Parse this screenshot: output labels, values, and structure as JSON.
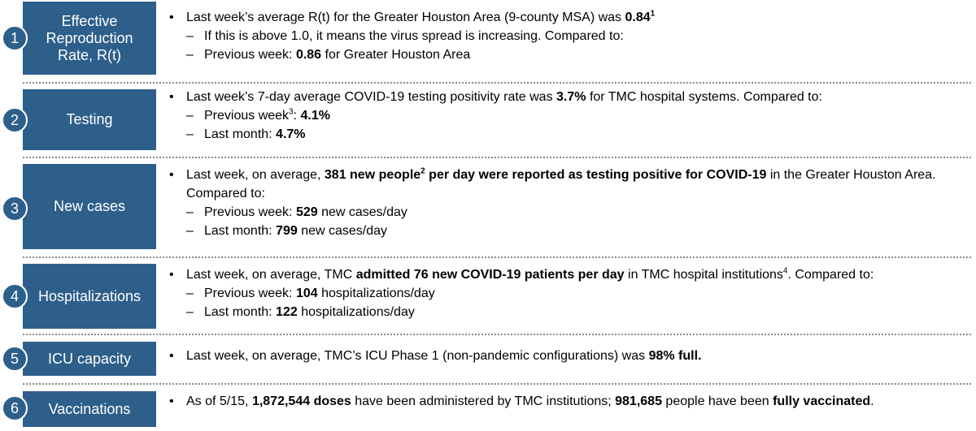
{
  "sections": [
    {
      "num": "1",
      "label_lines": [
        "Effective",
        "Reproduction",
        "Rate, R(t)"
      ],
      "lines": [
        {
          "level": 1,
          "parts": [
            {
              "t": "Last week’s average R(t) for the Greater Houston Area (9-county MSA) was "
            },
            {
              "t": "0.84",
              "b": true
            },
            {
              "t": "1",
              "sup": true,
              "b": true
            }
          ]
        },
        {
          "level": 2,
          "parts": [
            {
              "t": "If this is above 1.0, it means the virus spread is increasing. Compared to:"
            }
          ]
        },
        {
          "level": 2,
          "parts": [
            {
              "t": "Previous week: "
            },
            {
              "t": "0.86",
              "b": true
            },
            {
              "t": " for Greater Houston Area"
            }
          ]
        }
      ]
    },
    {
      "num": "2",
      "label_lines": [
        "Testing"
      ],
      "lines": [
        {
          "level": 1,
          "parts": [
            {
              "t": "Last week’s 7-day average COVID-19 testing positivity rate was "
            },
            {
              "t": "3.7%",
              "b": true
            },
            {
              "t": " for TMC hospital systems.  Compared to:"
            }
          ]
        },
        {
          "level": 2,
          "parts": [
            {
              "t": "Previous week"
            },
            {
              "t": "3",
              "sup": true
            },
            {
              "t": ": "
            },
            {
              "t": "4.1%",
              "b": true
            }
          ]
        },
        {
          "level": 2,
          "parts": [
            {
              "t": "Last month: "
            },
            {
              "t": "4.7%",
              "b": true
            }
          ]
        }
      ]
    },
    {
      "num": "3",
      "label_lines": [
        "New cases"
      ],
      "lines": [
        {
          "level": 1,
          "wrap": true,
          "parts": [
            {
              "t": "Last week, on average, "
            },
            {
              "t": "381 new people",
              "b": true
            },
            {
              "t": "2",
              "sup": true,
              "b": true
            },
            {
              "t": " per day were reported as testing positive for COVID-19",
              "b": true
            },
            {
              "t": " in the Greater Houston Area. Compared to:"
            }
          ]
        },
        {
          "level": 2,
          "parts": [
            {
              "t": "Previous week: "
            },
            {
              "t": "529",
              "b": true
            },
            {
              "t": " new cases/day"
            }
          ]
        },
        {
          "level": 2,
          "parts": [
            {
              "t": "Last month: "
            },
            {
              "t": "799",
              "b": true
            },
            {
              "t": " new cases/day"
            }
          ]
        }
      ]
    },
    {
      "num": "4",
      "label_lines": [
        "Hospitalizations"
      ],
      "lines": [
        {
          "level": 1,
          "parts": [
            {
              "t": "Last week, on average, TMC "
            },
            {
              "t": "admitted 76 new COVID-19 patients per day",
              "b": true
            },
            {
              "t": " in TMC hospital institutions"
            },
            {
              "t": "4",
              "sup": true
            },
            {
              "t": ". Compared to:"
            }
          ]
        },
        {
          "level": 2,
          "parts": [
            {
              "t": "Previous week: "
            },
            {
              "t": "104",
              "b": true
            },
            {
              "t": " hospitalizations/day"
            }
          ]
        },
        {
          "level": 2,
          "parts": [
            {
              "t": "Last month: "
            },
            {
              "t": "122",
              "b": true
            },
            {
              "t": " hospitalizations/day"
            }
          ]
        }
      ]
    },
    {
      "num": "5",
      "label_lines": [
        "ICU capacity"
      ],
      "lines": [
        {
          "level": 1,
          "parts": [
            {
              "t": "Last week, on average, TMC’s ICU Phase 1 (non-pandemic configurations) was "
            },
            {
              "t": "98% full.",
              "b": true
            }
          ]
        }
      ]
    },
    {
      "num": "6",
      "label_lines": [
        "Vaccinations"
      ],
      "lines": [
        {
          "level": 1,
          "parts": [
            {
              "t": "As of 5/15, "
            },
            {
              "t": "1,872,544 doses",
              "b": true
            },
            {
              "t": " have been administered by TMC institutions; "
            },
            {
              "t": "981,685",
              "b": true
            },
            {
              "t": " people have been "
            },
            {
              "t": "fully vaccinated",
              "b": true
            },
            {
              "t": "."
            }
          ]
        }
      ]
    }
  ],
  "symbols": {
    "bullet": "•",
    "dash": "–"
  },
  "colors": {
    "box": "#2d5f8a",
    "separator": "#8a8a8a"
  }
}
